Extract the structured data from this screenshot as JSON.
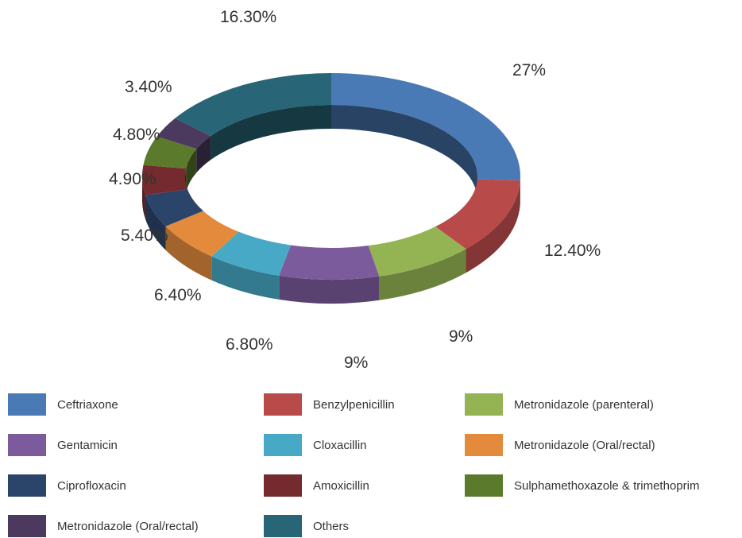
{
  "chart_data": {
    "type": "pie",
    "style": "3d-donut",
    "slices": [
      {
        "label": "Ceftriaxone",
        "value": 27,
        "display": "27%",
        "color": "#4a7ab5"
      },
      {
        "label": "Benzylpenicillin",
        "value": 12.4,
        "display": "12.40%",
        "color": "#b84a4a"
      },
      {
        "label": "Metronidazole (parenteral)",
        "value": 9,
        "display": "9%",
        "color": "#94b454"
      },
      {
        "label": "Gentamicin",
        "value": 9,
        "display": "9%",
        "color": "#7b5b9b"
      },
      {
        "label": "Cloxacillin",
        "value": 6.8,
        "display": "6.80%",
        "color": "#47a9c5"
      },
      {
        "label": "Metronidazole (Oral/rectal)",
        "value": 6.4,
        "display": "6.40%",
        "color": "#e38a3d"
      },
      {
        "label": "Ciprofloxacin",
        "value": 5.4,
        "display": "5.40%",
        "color": "#2b4469"
      },
      {
        "label": "Amoxicillin",
        "value": 4.9,
        "display": "4.90%",
        "color": "#742a2e"
      },
      {
        "label": "Sulphamethoxazole & trimethoprim",
        "value": 4.8,
        "display": "4.80%",
        "color": "#5b7a2c"
      },
      {
        "label": "Metronidazole (Oral/rectal)",
        "value": 3.4,
        "display": "3.40%",
        "color": "#4b3a5d"
      },
      {
        "label": "Others",
        "value": 16.3,
        "display": "16.30%",
        "color": "#286576"
      }
    ],
    "legend": {
      "placement": "bottom",
      "items": [
        {
          "label": "Ceftriaxone",
          "color": "#4a7ab5"
        },
        {
          "label": "Benzylpenicillin",
          "color": "#b84a4a"
        },
        {
          "label": "Metronidazole (parenteral)",
          "color": "#94b454"
        },
        {
          "label": "Gentamicin",
          "color": "#7b5b9b"
        },
        {
          "label": "Cloxacillin",
          "color": "#47a9c5"
        },
        {
          "label": "Metronidazole (Oral/rectal)",
          "color": "#e38a3d"
        },
        {
          "label": "Ciprofloxacin",
          "color": "#2b4469"
        },
        {
          "label": "Amoxicillin",
          "color": "#742a2e"
        },
        {
          "label": "Sulphamethoxazole & trimethoprim",
          "color": "#5b7a2c"
        },
        {
          "label": "Metronidazole (Oral/rectal)",
          "color": "#4b3a5d"
        },
        {
          "label": "Others",
          "color": "#286576"
        }
      ]
    }
  }
}
